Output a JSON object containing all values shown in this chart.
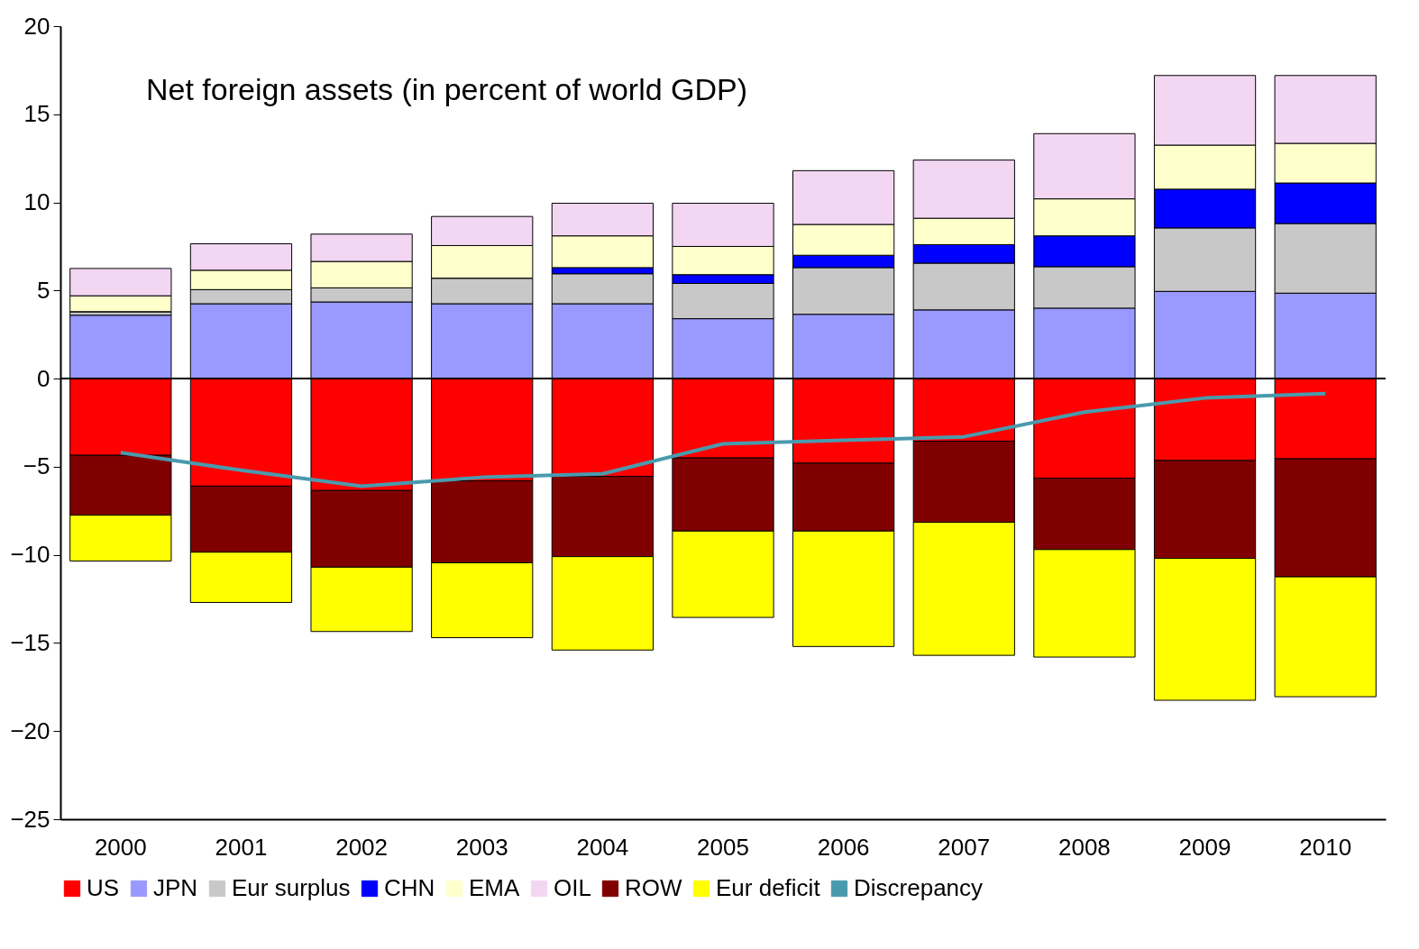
{
  "chart_data": {
    "type": "bar",
    "title": "Net foreign assets (in percent of world GDP)",
    "stacked": true,
    "categories": [
      "2000",
      "2001",
      "2002",
      "2003",
      "2004",
      "2005",
      "2006",
      "2007",
      "2008",
      "2009",
      "2010"
    ],
    "ylim": [
      -25,
      20
    ],
    "yticks": [
      -25,
      -20,
      -15,
      -10,
      -5,
      0,
      5,
      10,
      15,
      20
    ],
    "grid": false,
    "legend": "bottom",
    "ref_lines": [
      {
        "axis": "y",
        "value": 0,
        "color": "#000000"
      }
    ],
    "series": [
      {
        "name": "US",
        "color": "#ff0000",
        "values": [
          -4.35,
          -6.1,
          -6.35,
          -5.8,
          -5.55,
          -4.5,
          -4.8,
          -3.55,
          -5.65,
          -4.65,
          -4.55
        ]
      },
      {
        "name": "JPN",
        "color": "#9999ff",
        "values": [
          3.6,
          4.25,
          4.35,
          4.25,
          4.25,
          3.4,
          3.65,
          3.9,
          4.0,
          4.95,
          4.85
        ]
      },
      {
        "name": "Eur surplus",
        "color": "#c8c8c8",
        "values": [
          0.2,
          0.8,
          0.8,
          1.45,
          1.7,
          2.0,
          2.65,
          2.65,
          2.35,
          3.6,
          3.95
        ]
      },
      {
        "name": "CHN",
        "color": "#0000ff",
        "values": [
          0,
          0,
          0,
          0,
          0.35,
          0.5,
          0.7,
          1.05,
          1.75,
          2.2,
          2.3
        ]
      },
      {
        "name": "EMA",
        "color": "#ffffcc",
        "values": [
          0.9,
          1.1,
          1.5,
          1.85,
          1.8,
          1.6,
          1.75,
          1.5,
          2.1,
          2.5,
          2.25
        ]
      },
      {
        "name": "OIL",
        "color": "#f2d6f2",
        "values": [
          1.55,
          1.5,
          1.55,
          1.65,
          1.85,
          2.45,
          3.05,
          3.3,
          3.7,
          3.95,
          3.85
        ]
      },
      {
        "name": "ROW",
        "color": "#800000",
        "values": [
          -3.4,
          -3.75,
          -4.35,
          -4.65,
          -4.55,
          -4.15,
          -3.85,
          -4.6,
          -4.05,
          -5.55,
          -6.7
        ]
      },
      {
        "name": "Eur deficit",
        "color": "#ffff00",
        "values": [
          -2.6,
          -2.85,
          -3.65,
          -4.25,
          -5.3,
          -4.9,
          -6.55,
          -7.55,
          -6.1,
          -8.05,
          -6.8
        ]
      },
      {
        "name": "Discrepancy",
        "type": "line",
        "color": "#4a9aad",
        "values": [
          -4.2,
          -5.2,
          -6.1,
          -5.6,
          -5.4,
          -3.7,
          -3.5,
          -3.3,
          -1.9,
          -1.1,
          -0.85
        ]
      }
    ]
  }
}
